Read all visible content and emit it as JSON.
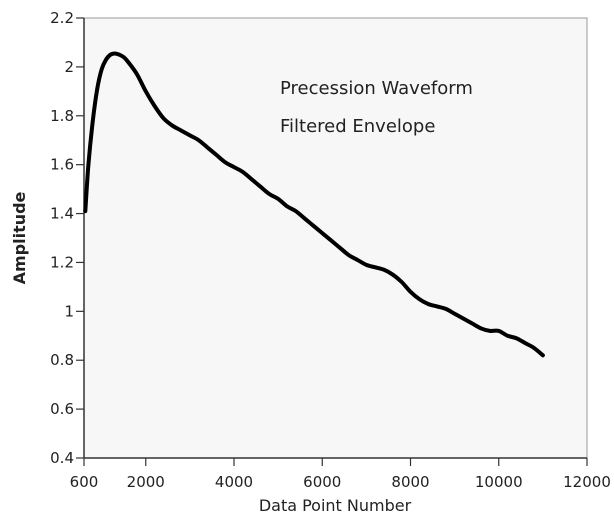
{
  "chart_data": {
    "type": "line",
    "title": "",
    "xlabel": "Data Point Number",
    "ylabel": "Amplitude",
    "xlim": [
      600,
      12000
    ],
    "ylim": [
      0.4,
      2.2
    ],
    "x_ticks": [
      600,
      2000,
      4000,
      6000,
      8000,
      10000,
      12000
    ],
    "y_ticks": [
      0.4,
      0.6,
      0.8,
      1,
      1.2,
      1.4,
      1.6,
      1.8,
      2,
      2.2
    ],
    "x_tick_labels": [
      "600",
      "2000",
      "4000",
      "6000",
      "8000",
      "10000",
      "12000"
    ],
    "y_tick_labels": [
      "0.4",
      "0.6",
      "0.8",
      "1",
      "1.2",
      "1.4",
      "1.6",
      "1.8",
      "2",
      "2.2"
    ],
    "annotations": [
      "Precession Waveform",
      "Filtered Envelope"
    ],
    "grid": false,
    "background_color": "#f7f7f7",
    "line_color": "#000000",
    "series": [
      {
        "x": [
          630,
          700,
          800,
          900,
          1000,
          1100,
          1200,
          1300,
          1400,
          1500,
          1600,
          1800,
          2000,
          2200,
          2400,
          2600,
          2800,
          3000,
          3200,
          3400,
          3600,
          3800,
          4000,
          4200,
          4400,
          4600,
          4800,
          5000,
          5200,
          5400,
          5600,
          5800,
          6000,
          6200,
          6400,
          6600,
          6800,
          7000,
          7200,
          7400,
          7600,
          7800,
          8000,
          8200,
          8400,
          8600,
          8800,
          9000,
          9200,
          9400,
          9600,
          9800,
          10000,
          10200,
          10400,
          10600,
          10800,
          11000
        ],
        "y": [
          1.41,
          1.6,
          1.78,
          1.91,
          1.99,
          2.03,
          2.05,
          2.055,
          2.05,
          2.04,
          2.02,
          1.97,
          1.9,
          1.84,
          1.79,
          1.76,
          1.74,
          1.72,
          1.7,
          1.67,
          1.64,
          1.61,
          1.59,
          1.57,
          1.54,
          1.51,
          1.48,
          1.46,
          1.43,
          1.41,
          1.38,
          1.35,
          1.32,
          1.29,
          1.26,
          1.23,
          1.21,
          1.19,
          1.18,
          1.17,
          1.15,
          1.12,
          1.08,
          1.05,
          1.03,
          1.02,
          1.01,
          0.99,
          0.97,
          0.95,
          0.93,
          0.92,
          0.92,
          0.9,
          0.89,
          0.87,
          0.85,
          0.82
        ]
      }
    ]
  }
}
